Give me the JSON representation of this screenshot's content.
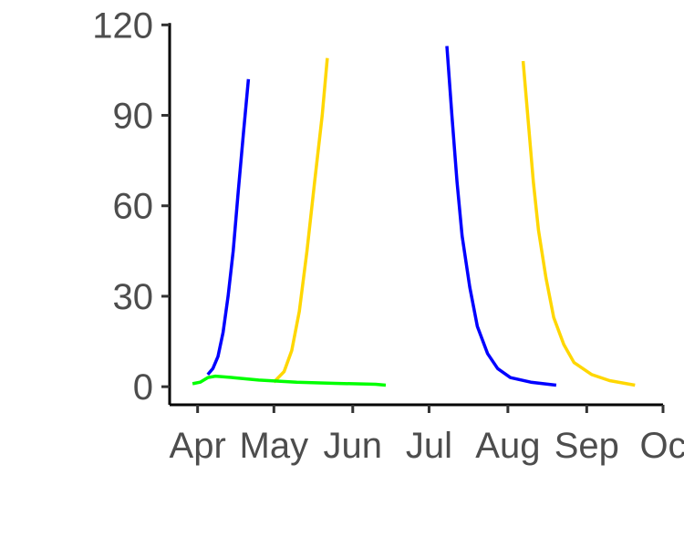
{
  "chart_data": {
    "type": "line",
    "title": "",
    "xlabel": "",
    "ylabel": "",
    "grid": false,
    "legend": "none",
    "ylim": [
      -6,
      121
    ],
    "xlim": [
      "2000-03-21",
      "2000-10-01"
    ],
    "y_ticks": [
      0,
      30,
      60,
      90,
      120
    ],
    "x_ticks": [
      {
        "date": "2000-04-01",
        "label": "Apr"
      },
      {
        "date": "2000-05-01",
        "label": "May"
      },
      {
        "date": "2000-06-01",
        "label": "Jun"
      },
      {
        "date": "2000-07-01",
        "label": "Jul"
      },
      {
        "date": "2000-08-01",
        "label": "Aug"
      },
      {
        "date": "2000-09-01",
        "label": "Sep"
      },
      {
        "date": "2000-10-01",
        "label": "Oc"
      }
    ],
    "series": [
      {
        "color": "#0000ff",
        "points": [
          [
            "2000-04-05",
            4
          ],
          [
            "2000-04-07",
            6
          ],
          [
            "2000-04-09",
            10
          ],
          [
            "2000-04-11",
            18
          ],
          [
            "2000-04-13",
            30
          ],
          [
            "2000-04-15",
            45
          ],
          [
            "2000-04-17",
            65
          ],
          [
            "2000-04-19",
            84
          ],
          [
            "2000-04-21",
            102
          ]
        ]
      },
      {
        "color": "#ffd700",
        "points": [
          [
            "2000-05-01",
            1.5
          ],
          [
            "2000-05-05",
            5
          ],
          [
            "2000-05-08",
            12
          ],
          [
            "2000-05-11",
            25
          ],
          [
            "2000-05-14",
            45
          ],
          [
            "2000-05-17",
            68
          ],
          [
            "2000-05-20",
            90
          ],
          [
            "2000-05-22",
            109
          ]
        ]
      },
      {
        "color": "#00ff00",
        "points": [
          [
            "2000-03-30",
            1
          ],
          [
            "2000-04-02",
            1.5
          ],
          [
            "2000-04-05",
            3
          ],
          [
            "2000-04-08",
            3.5
          ],
          [
            "2000-04-15",
            3
          ],
          [
            "2000-04-25",
            2.2
          ],
          [
            "2000-05-10",
            1.5
          ],
          [
            "2000-05-25",
            1.1
          ],
          [
            "2000-06-10",
            0.8
          ],
          [
            "2000-06-14",
            0.5
          ]
        ]
      },
      {
        "color": "#0000ff",
        "points": [
          [
            "2000-07-08",
            113
          ],
          [
            "2000-07-10",
            90
          ],
          [
            "2000-07-12",
            68
          ],
          [
            "2000-07-14",
            50
          ],
          [
            "2000-07-17",
            33
          ],
          [
            "2000-07-20",
            20
          ],
          [
            "2000-07-24",
            11
          ],
          [
            "2000-07-28",
            6
          ],
          [
            "2000-08-02",
            3
          ],
          [
            "2000-08-10",
            1.5
          ],
          [
            "2000-08-20",
            0.5
          ]
        ]
      },
      {
        "color": "#ffd700",
        "points": [
          [
            "2000-08-07",
            108
          ],
          [
            "2000-08-09",
            88
          ],
          [
            "2000-08-11",
            68
          ],
          [
            "2000-08-13",
            52
          ],
          [
            "2000-08-16",
            36
          ],
          [
            "2000-08-19",
            23
          ],
          [
            "2000-08-23",
            14
          ],
          [
            "2000-08-27",
            8
          ],
          [
            "2000-09-03",
            4
          ],
          [
            "2000-09-10",
            2
          ],
          [
            "2000-09-20",
            0.5
          ]
        ]
      }
    ]
  }
}
